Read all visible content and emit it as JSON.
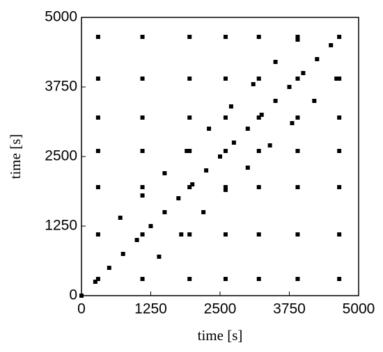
{
  "chart_data": {
    "type": "scatter",
    "x_label": "time [s]",
    "y_label": "time [s]",
    "x": [
      300,
      1100,
      1950,
      2600,
      3200,
      3900,
      4650,
      300,
      1100,
      1950,
      2600,
      3200,
      3900,
      4650,
      300,
      1100,
      1950,
      2600,
      3200,
      3900,
      4650,
      300,
      1100,
      1950,
      2600,
      3200,
      3900,
      4650,
      300,
      1100,
      1950,
      2600,
      3200,
      3900,
      4650,
      300,
      1100,
      1950,
      2600,
      3200,
      3900,
      4650,
      300,
      1100,
      1950,
      2600,
      3200,
      3900,
      4650,
      0,
      250,
      500,
      750,
      1000,
      1250,
      1500,
      1750,
      2000,
      2250,
      2500,
      2750,
      3000,
      3250,
      3500,
      3750,
      4000,
      4250,
      4500,
      1400,
      1800,
      2200,
      2600,
      3000,
      3400,
      3800,
      4200,
      4600,
      700,
      1100,
      1500,
      1900,
      2300,
      2700,
      3100,
      3500,
      3900
    ],
    "y": [
      300,
      300,
      300,
      300,
      300,
      300,
      300,
      1100,
      1100,
      1100,
      1100,
      1100,
      1100,
      1100,
      1950,
      1950,
      1950,
      1950,
      1950,
      1950,
      1950,
      2600,
      2600,
      2600,
      2600,
      2600,
      2600,
      2600,
      3200,
      3200,
      3200,
      3200,
      3200,
      3200,
      3200,
      3900,
      3900,
      3900,
      3900,
      3900,
      3900,
      3900,
      4650,
      4650,
      4650,
      4650,
      4650,
      4650,
      4650,
      0,
      250,
      500,
      750,
      1000,
      1250,
      1500,
      1750,
      2000,
      2250,
      2500,
      2750,
      3000,
      3250,
      3500,
      3750,
      4000,
      4250,
      4500,
      700,
      1100,
      1500,
      1900,
      2300,
      2700,
      3100,
      3500,
      3900,
      1400,
      1800,
      2200,
      2600,
      3000,
      3400,
      3800,
      4200,
      4600
    ],
    "color": "#000000",
    "xlim": [
      0,
      5000
    ],
    "ylim": [
      0,
      5000
    ],
    "xticks": [
      0,
      1250,
      2500,
      3750,
      5000
    ],
    "yticks": [
      0,
      1250,
      2500,
      3750,
      5000
    ]
  }
}
